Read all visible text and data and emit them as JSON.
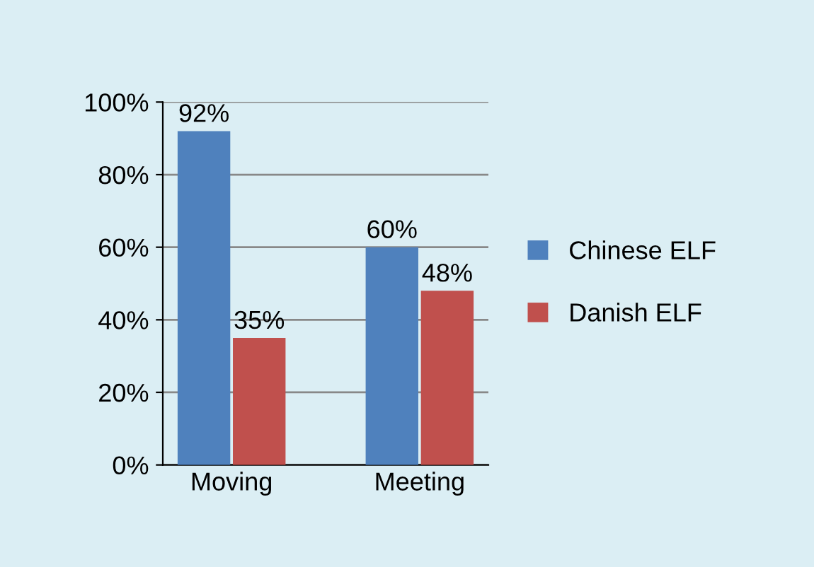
{
  "chart_data": {
    "type": "bar",
    "categories": [
      "Moving",
      "Meeting"
    ],
    "series": [
      {
        "name": "Chinese ELF",
        "color": "#4f81bd",
        "values": [
          92,
          60
        ],
        "value_labels": [
          "92%",
          "60%"
        ]
      },
      {
        "name": "Danish ELF",
        "color": "#c0504d",
        "values": [
          35,
          48
        ],
        "value_labels": [
          "35%",
          "48%"
        ]
      }
    ],
    "ylim": [
      0,
      100
    ],
    "yticks": [
      {
        "value": 0,
        "label": "0%"
      },
      {
        "value": 20,
        "label": "20%"
      },
      {
        "value": 40,
        "label": "40%"
      },
      {
        "value": 60,
        "label": "60%"
      },
      {
        "value": 80,
        "label": "80%"
      },
      {
        "value": 100,
        "label": "100%"
      }
    ],
    "grid": "y",
    "legend": "right"
  }
}
